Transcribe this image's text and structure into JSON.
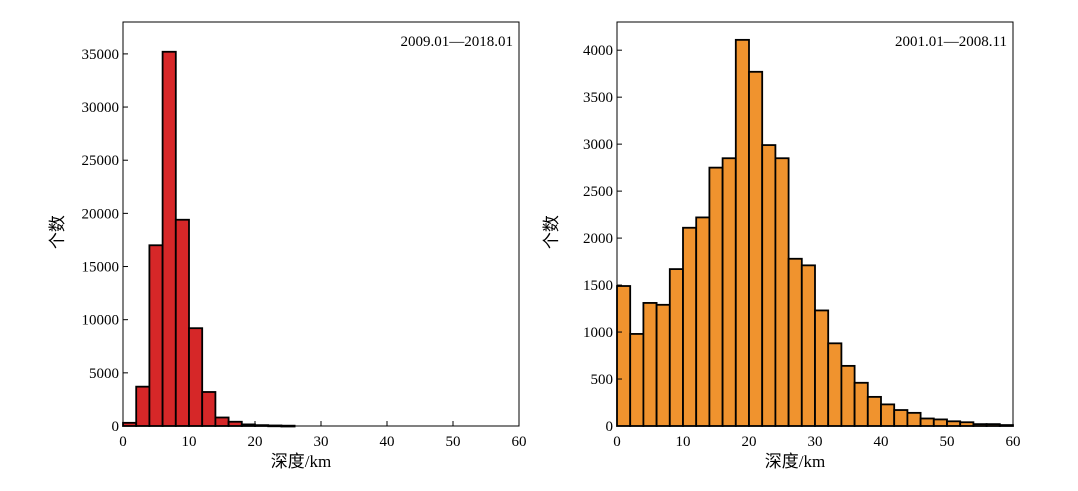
{
  "chart_data": [
    {
      "type": "bar",
      "period_label": "2009.01—2018.01",
      "xlabel": "深度/km",
      "ylabel": "个数",
      "xlim": [
        0,
        60
      ],
      "ylim": [
        0,
        38000
      ],
      "bin_width": 2,
      "xticks": [
        "0",
        "10",
        "20",
        "30",
        "40",
        "50",
        "60"
      ],
      "yticks": [
        "0",
        "5000",
        "10000",
        "15000",
        "20000",
        "25000",
        "30000",
        "35000"
      ],
      "bin_starts": [
        0,
        2,
        4,
        6,
        8,
        10,
        12,
        14,
        16,
        18,
        20,
        22,
        24
      ],
      "values": [
        300,
        3700,
        17000,
        35200,
        19400,
        9200,
        3200,
        800,
        400,
        150,
        80,
        50,
        30
      ],
      "bar_color": "#d62728"
    },
    {
      "type": "bar",
      "period_label": "2001.01—2008.11",
      "xlabel": "深度/km",
      "ylabel": "个数",
      "xlim": [
        0,
        60
      ],
      "ylim": [
        0,
        4300
      ],
      "bin_width": 2,
      "xticks": [
        "0",
        "10",
        "20",
        "30",
        "40",
        "50",
        "60"
      ],
      "yticks": [
        "0",
        "500",
        "1000",
        "1500",
        "2000",
        "2500",
        "3000",
        "3500",
        "4000"
      ],
      "bin_starts": [
        0,
        2,
        4,
        6,
        8,
        10,
        12,
        14,
        16,
        18,
        20,
        22,
        24,
        26,
        28,
        30,
        32,
        34,
        36,
        38,
        40,
        42,
        44,
        46,
        48,
        50,
        52,
        54,
        56,
        58
      ],
      "values": [
        1490,
        980,
        1310,
        1290,
        1670,
        2110,
        2220,
        2750,
        2850,
        4110,
        3770,
        2990,
        2850,
        1780,
        1710,
        1230,
        880,
        640,
        460,
        310,
        230,
        170,
        140,
        80,
        70,
        50,
        40,
        20,
        20,
        10
      ],
      "bar_color": "#f0932e"
    }
  ]
}
